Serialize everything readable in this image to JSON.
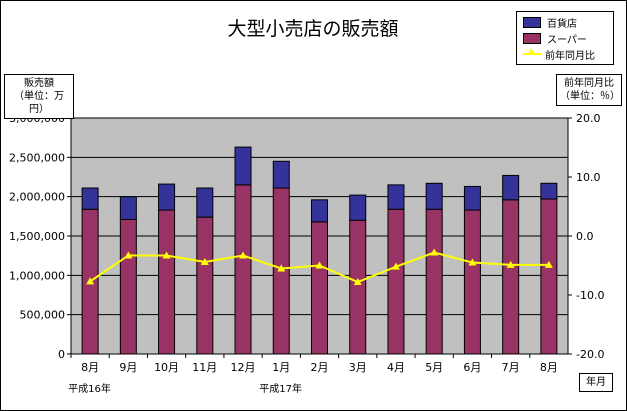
{
  "chart_data": {
    "type": "bar",
    "title": "大型小売店の販売額",
    "ylabel_left": [
      "販売額",
      "（単位：万円）"
    ],
    "ylabel_right": [
      "前年同月比",
      "（単位：％）"
    ],
    "xlabel": "年月",
    "categories": [
      "8月",
      "9月",
      "10月",
      "11月",
      "12月",
      "1月",
      "2月",
      "3月",
      "4月",
      "5月",
      "6月",
      "7月",
      "8月"
    ],
    "era_labels": [
      {
        "text": "平成16年",
        "index": 0
      },
      {
        "text": "平成17年",
        "index": 5
      }
    ],
    "y_left": {
      "min": 0,
      "max": 3000000,
      "step": 500000,
      "ticks": [
        "0",
        "500,000",
        "1,000,000",
        "1,500,000",
        "2,000,000",
        "2,500,000",
        "3,000,000"
      ]
    },
    "y_right": {
      "min": -20,
      "max": 20,
      "step": 10,
      "ticks": [
        "-20.0",
        "-10.0",
        "0.0",
        "10.0",
        "20.0"
      ]
    },
    "stacked": true,
    "series": [
      {
        "name": "スーパー",
        "kind": "bar",
        "color": "#993366",
        "axis": "left",
        "values": [
          1840000,
          1710000,
          1830000,
          1740000,
          2150000,
          2110000,
          1680000,
          1700000,
          1840000,
          1840000,
          1830000,
          1960000,
          1970000
        ]
      },
      {
        "name": "百貨店",
        "kind": "bar",
        "color": "#333399",
        "axis": "left",
        "values": [
          270000,
          290000,
          330000,
          370000,
          480000,
          340000,
          280000,
          320000,
          310000,
          330000,
          300000,
          310000,
          200000
        ]
      },
      {
        "name": "前年同月比",
        "kind": "line",
        "color": "#ffff00",
        "axis": "right",
        "values": [
          -7.7,
          -3.3,
          -3.3,
          -4.4,
          -3.3,
          -5.5,
          -5.0,
          -7.8,
          -5.2,
          -2.8,
          -4.5,
          -4.9,
          -4.9
        ]
      }
    ],
    "legend": {
      "position": "top-right",
      "order": [
        "百貨店",
        "スーパー",
        "前年同月比"
      ]
    },
    "plot_background": "#c0c0c0",
    "grid": true
  }
}
